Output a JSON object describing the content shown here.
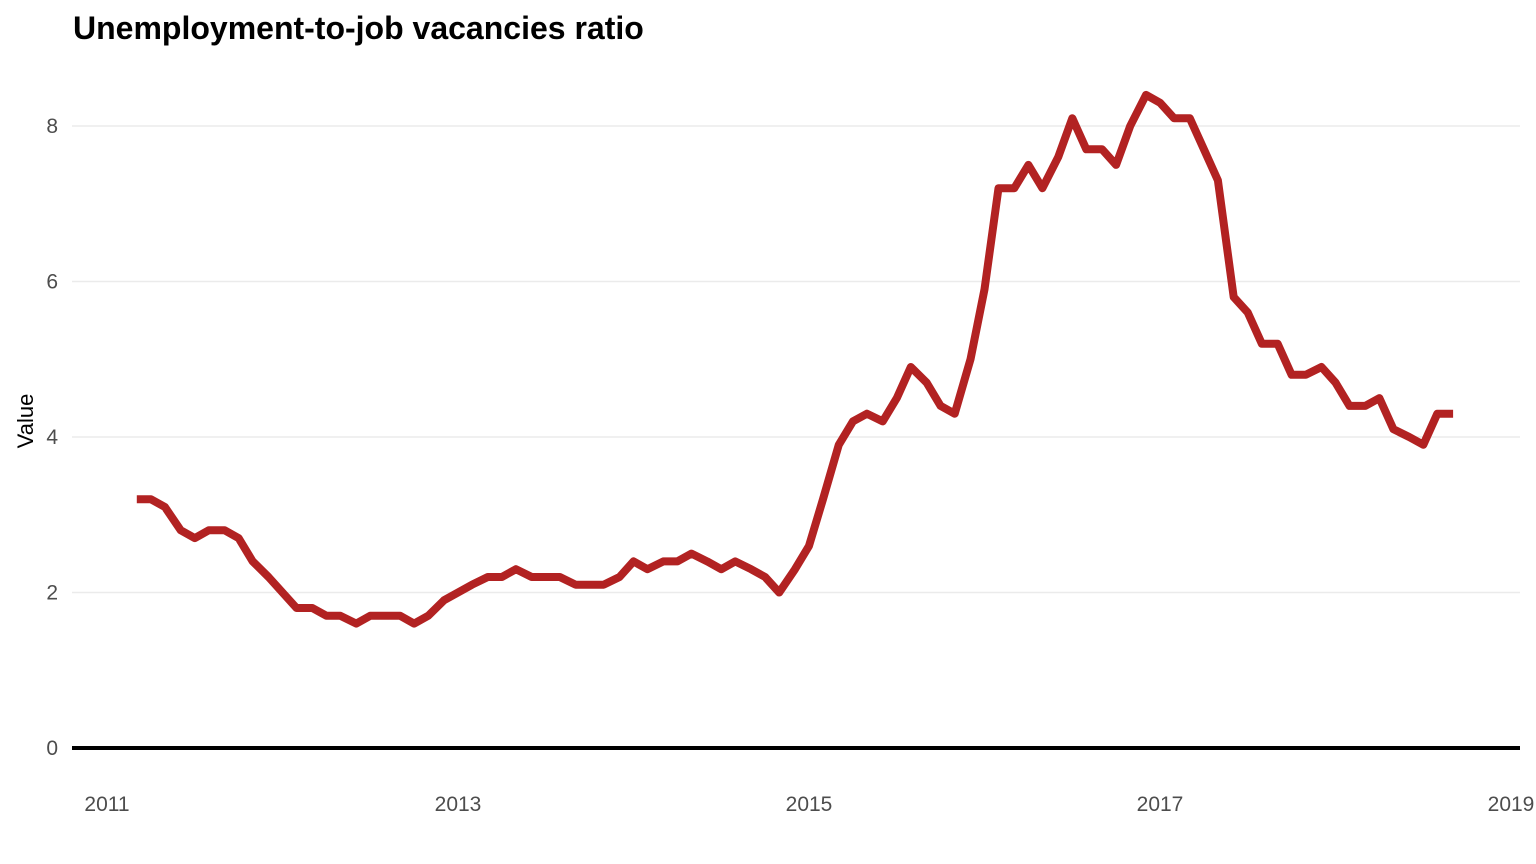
{
  "chart_data": {
    "type": "line",
    "title": "Unemployment-to-job vacancies ratio",
    "xlabel": "",
    "ylabel": "Value",
    "xlim": [
      2011,
      2019
    ],
    "ylim": [
      0,
      8.8
    ],
    "x_ticks": [
      2011,
      2013,
      2015,
      2017,
      2019
    ],
    "x_tick_labels": [
      "2011",
      "2013",
      "2015",
      "2017",
      "2019"
    ],
    "y_ticks": [
      0,
      2,
      4,
      6,
      8
    ],
    "y_tick_labels": [
      "0",
      "2",
      "4",
      "6",
      "8"
    ],
    "grid": "horizontal major only",
    "legend": "none",
    "line_color": "#b22222",
    "baseline_color": "#000000",
    "series": [
      {
        "x": [
          2011.17,
          2011.25,
          2011.33,
          2011.42,
          2011.5,
          2011.58,
          2011.67,
          2011.75,
          2011.83,
          2011.92,
          2012.0,
          2012.08,
          2012.17,
          2012.25,
          2012.33,
          2012.42,
          2012.5,
          2012.58,
          2012.67,
          2012.75,
          2012.83,
          2012.92,
          2013.0,
          2013.08,
          2013.17,
          2013.25,
          2013.33,
          2013.42,
          2013.5,
          2013.58,
          2013.67,
          2013.75,
          2013.83,
          2013.92,
          2014.0,
          2014.08,
          2014.17,
          2014.25,
          2014.33,
          2014.42,
          2014.5,
          2014.58,
          2014.67,
          2014.75,
          2014.83,
          2014.92,
          2015.0,
          2015.08,
          2015.17,
          2015.25,
          2015.33,
          2015.42,
          2015.5,
          2015.58,
          2015.67,
          2015.75,
          2015.83,
          2015.92,
          2016.0,
          2016.08,
          2016.17,
          2016.25,
          2016.33,
          2016.42,
          2016.5,
          2016.58,
          2016.67,
          2016.75,
          2016.83,
          2016.92,
          2017.0,
          2017.08,
          2017.17,
          2017.25,
          2017.33,
          2017.42,
          2017.5,
          2017.58,
          2017.67,
          2017.75,
          2017.83,
          2017.92,
          2018.0,
          2018.08,
          2018.17,
          2018.25,
          2018.33,
          2018.42,
          2018.5,
          2018.58,
          2018.67
        ],
        "y": [
          3.2,
          3.2,
          3.1,
          2.8,
          2.7,
          2.8,
          2.8,
          2.7,
          2.4,
          2.2,
          2.0,
          1.8,
          1.8,
          1.7,
          1.7,
          1.6,
          1.7,
          1.7,
          1.7,
          1.6,
          1.7,
          1.9,
          2.0,
          2.1,
          2.2,
          2.2,
          2.3,
          2.2,
          2.2,
          2.2,
          2.1,
          2.1,
          2.1,
          2.2,
          2.4,
          2.3,
          2.4,
          2.4,
          2.5,
          2.4,
          2.3,
          2.4,
          2.3,
          2.2,
          2.0,
          2.3,
          2.6,
          3.2,
          3.9,
          4.2,
          4.3,
          4.2,
          4.5,
          4.9,
          4.7,
          4.4,
          4.3,
          5.0,
          5.9,
          7.2,
          7.2,
          7.5,
          7.2,
          7.6,
          8.1,
          7.7,
          7.7,
          7.5,
          8.0,
          8.4,
          8.3,
          8.1,
          8.1,
          7.7,
          7.3,
          5.8,
          5.6,
          5.2,
          5.2,
          4.8,
          4.8,
          4.9,
          4.7,
          4.4,
          4.4,
          4.5,
          4.1,
          4.0,
          3.9,
          4.3,
          4.3
        ]
      }
    ]
  }
}
